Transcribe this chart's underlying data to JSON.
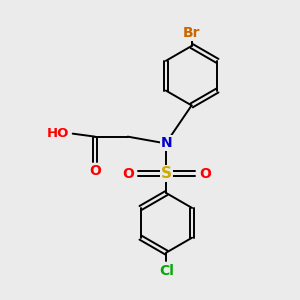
{
  "background_color": "#ebebeb",
  "atom_colors": {
    "C": "#000000",
    "N": "#0000cc",
    "O": "#ff0000",
    "S": "#ccaa00",
    "Br": "#cc6600",
    "Cl": "#00aa00",
    "H": "#777777"
  },
  "bond_color": "#000000",
  "bond_width": 1.4,
  "font_size": 10,
  "fig_w": 3.0,
  "fig_h": 3.0,
  "dpi": 100
}
